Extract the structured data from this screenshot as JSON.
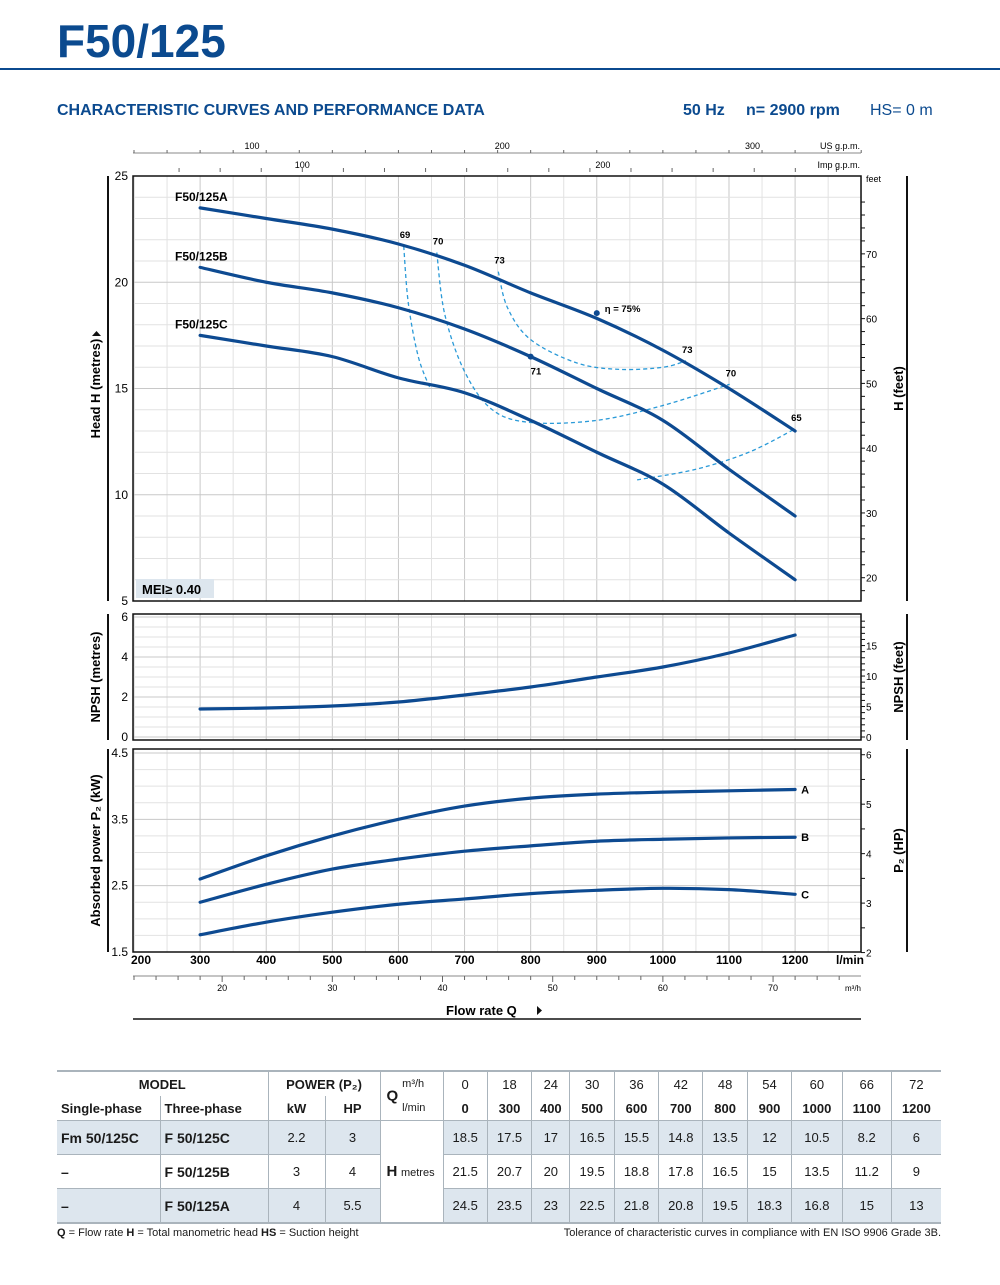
{
  "header": {
    "title": "F50/125",
    "subtitle": "CHARACTERISTIC CURVES AND PERFORMANCE DATA",
    "frequency": "50 Hz",
    "speed": "n= 2900 rpm",
    "suction": "HS= 0 m"
  },
  "colors": {
    "brand": "#0b4a8f",
    "curve": "#0d4a91",
    "efficiency": "#2a9ad8",
    "table_shade": "#dde6ee"
  },
  "axes": {
    "us_gpm_label": "US g.p.m.",
    "imp_gpm_label": "Imp g.p.m.",
    "feet_label": "feet",
    "lmin_label": "l/min",
    "m3h_label": "m³/h",
    "flow_label": "Flow rate  Q",
    "us_gpm_ticks": [
      100,
      200,
      300
    ],
    "imp_gpm_ticks": [
      100,
      200
    ],
    "m3h_ticks": [
      20,
      30,
      40,
      50,
      60,
      70
    ],
    "lmin_ticks": [
      200,
      300,
      400,
      500,
      600,
      700,
      800,
      900,
      1000,
      1100,
      1200
    ]
  },
  "chart_data": [
    {
      "type": "line",
      "ylabel": "Head H  (metres)",
      "y2label": "H (feet)",
      "ylim": [
        5,
        25
      ],
      "yticks": [
        5,
        10,
        15,
        20,
        25
      ],
      "y2ticks": [
        20,
        30,
        40,
        50,
        60,
        70
      ],
      "xlim": [
        200,
        1300
      ],
      "x": [
        300,
        400,
        500,
        600,
        700,
        800,
        900,
        1000,
        1100,
        1200
      ],
      "series": [
        {
          "name": "F50/125A",
          "values": [
            23.5,
            23,
            22.5,
            21.8,
            20.8,
            19.5,
            18.3,
            16.8,
            15,
            13
          ]
        },
        {
          "name": "F50/125B",
          "values": [
            20.7,
            20,
            19.5,
            18.8,
            17.8,
            16.5,
            15,
            13.5,
            11.2,
            9
          ]
        },
        {
          "name": "F50/125C",
          "values": [
            17.5,
            17,
            16.5,
            15.5,
            14.8,
            13.5,
            12,
            10.5,
            8.2,
            6
          ]
        }
      ],
      "efficiency_curves": [
        {
          "label": "69",
          "points": [
            [
              608,
              21.7
            ],
            [
              615,
              19
            ],
            [
              630,
              16.5
            ],
            [
              648,
              15.0
            ]
          ]
        },
        {
          "label": "70",
          "points": [
            [
              658,
              21.4
            ],
            [
              670,
              18.5
            ],
            [
              700,
              15.8
            ],
            [
              742,
              14.0
            ],
            [
              800,
              13.4
            ],
            [
              900,
              13.5
            ],
            [
              1000,
              14.2
            ],
            [
              1101,
              15.2
            ]
          ]
        },
        {
          "label": "73",
          "points": [
            [
              751,
              20.5
            ],
            [
              765,
              18.8
            ],
            [
              800,
              17.3
            ],
            [
              870,
              16.2
            ],
            [
              935,
              15.9
            ],
            [
              1000,
              16.0
            ],
            [
              1035,
              16.3
            ]
          ]
        },
        {
          "label": "65",
          "points": [
            [
              961,
              10.7
            ],
            [
              1050,
              11.2
            ],
            [
              1130,
              12.0
            ],
            [
              1200,
              13.1
            ]
          ]
        }
      ],
      "efficiency_labels": [
        {
          "label": "69",
          "at": [
            608,
            21.7
          ]
        },
        {
          "label": "70",
          "at": [
            658,
            21.4
          ]
        },
        {
          "label": "73",
          "at": [
            751,
            20.5
          ]
        },
        {
          "label": "η = 75%",
          "at": [
            900,
            18.55
          ]
        },
        {
          "label": "71",
          "at": [
            800,
            16.5
          ]
        },
        {
          "label": "73",
          "at": [
            1035,
            16.3
          ]
        },
        {
          "label": "70",
          "at": [
            1101,
            15.2
          ]
        },
        {
          "label": "65",
          "at": [
            1200,
            13.1
          ]
        }
      ],
      "badge": "MEI≥ 0.40"
    },
    {
      "type": "line",
      "ylabel": "NPSH  (metres)",
      "y2label": "NPSH (feet)",
      "ylim": [
        0,
        6
      ],
      "yticks": [
        0,
        2,
        4,
        6
      ],
      "y2ticks": [
        0,
        5,
        10,
        15
      ],
      "x": [
        300,
        400,
        500,
        600,
        700,
        800,
        900,
        1000,
        1100,
        1200
      ],
      "series": [
        {
          "values": [
            1.4,
            1.45,
            1.55,
            1.75,
            2.1,
            2.5,
            3.0,
            3.5,
            4.2,
            5.1
          ]
        }
      ]
    },
    {
      "type": "line",
      "ylabel": "Absorbed power  P₂  (kW)",
      "y2label": "P₂ (HP)",
      "ylim": [
        1.5,
        4.5
      ],
      "yticks": [
        1.5,
        2.5,
        3.5,
        4.5
      ],
      "y2ticks": [
        2,
        3,
        4,
        5,
        6
      ],
      "x": [
        300,
        400,
        500,
        600,
        700,
        800,
        900,
        1000,
        1100,
        1200
      ],
      "series": [
        {
          "name": "A",
          "values": [
            2.6,
            2.95,
            3.25,
            3.5,
            3.7,
            3.82,
            3.88,
            3.91,
            3.93,
            3.95
          ]
        },
        {
          "name": "B",
          "values": [
            2.25,
            2.52,
            2.75,
            2.9,
            3.02,
            3.1,
            3.17,
            3.2,
            3.22,
            3.23
          ]
        },
        {
          "name": "C",
          "values": [
            1.76,
            1.95,
            2.1,
            2.22,
            2.3,
            2.38,
            2.43,
            2.46,
            2.44,
            2.37
          ]
        }
      ]
    }
  ],
  "table": {
    "h_model": "MODEL",
    "h_power": "POWER (P₂)",
    "h_single": "Single-phase",
    "h_three": "Three-phase",
    "h_kw": "kW",
    "h_hp": "HP",
    "h_q": "Q",
    "h_m3h": "m³/h",
    "h_lmin": "l/min",
    "h_h": "H",
    "h_metres": "metres",
    "m3h": [
      "0",
      "18",
      "24",
      "30",
      "36",
      "42",
      "48",
      "54",
      "60",
      "66",
      "72"
    ],
    "lmin": [
      "0",
      "300",
      "400",
      "500",
      "600",
      "700",
      "800",
      "900",
      "1000",
      "1100",
      "1200"
    ],
    "rows": [
      {
        "single": "Fm 50/125C",
        "three": "F 50/125C",
        "kw": "2.2",
        "hp": "3",
        "h": [
          "18.5",
          "17.5",
          "17",
          "16.5",
          "15.5",
          "14.8",
          "13.5",
          "12",
          "10.5",
          "8.2",
          "6"
        ]
      },
      {
        "single": "–",
        "three": "F 50/125B",
        "kw": "3",
        "hp": "4",
        "h": [
          "21.5",
          "20.7",
          "20",
          "19.5",
          "18.8",
          "17.8",
          "16.5",
          "15",
          "13.5",
          "11.2",
          "9"
        ]
      },
      {
        "single": "–",
        "three": "F 50/125A",
        "kw": "4",
        "hp": "5.5",
        "h": [
          "24.5",
          "23.5",
          "23",
          "22.5",
          "21.8",
          "20.8",
          "19.5",
          "18.3",
          "16.8",
          "15",
          "13"
        ]
      }
    ]
  },
  "footer": {
    "legend_q": "Q",
    "legend_q_text": " = Flow rate   ",
    "legend_h": "H",
    "legend_h_text": " = Total manometric head   ",
    "legend_hs": "HS",
    "legend_hs_text": " = Suction height",
    "tolerance": "Tolerance of characteristic curves in compliance with EN ISO 9906 Grade 3B."
  }
}
